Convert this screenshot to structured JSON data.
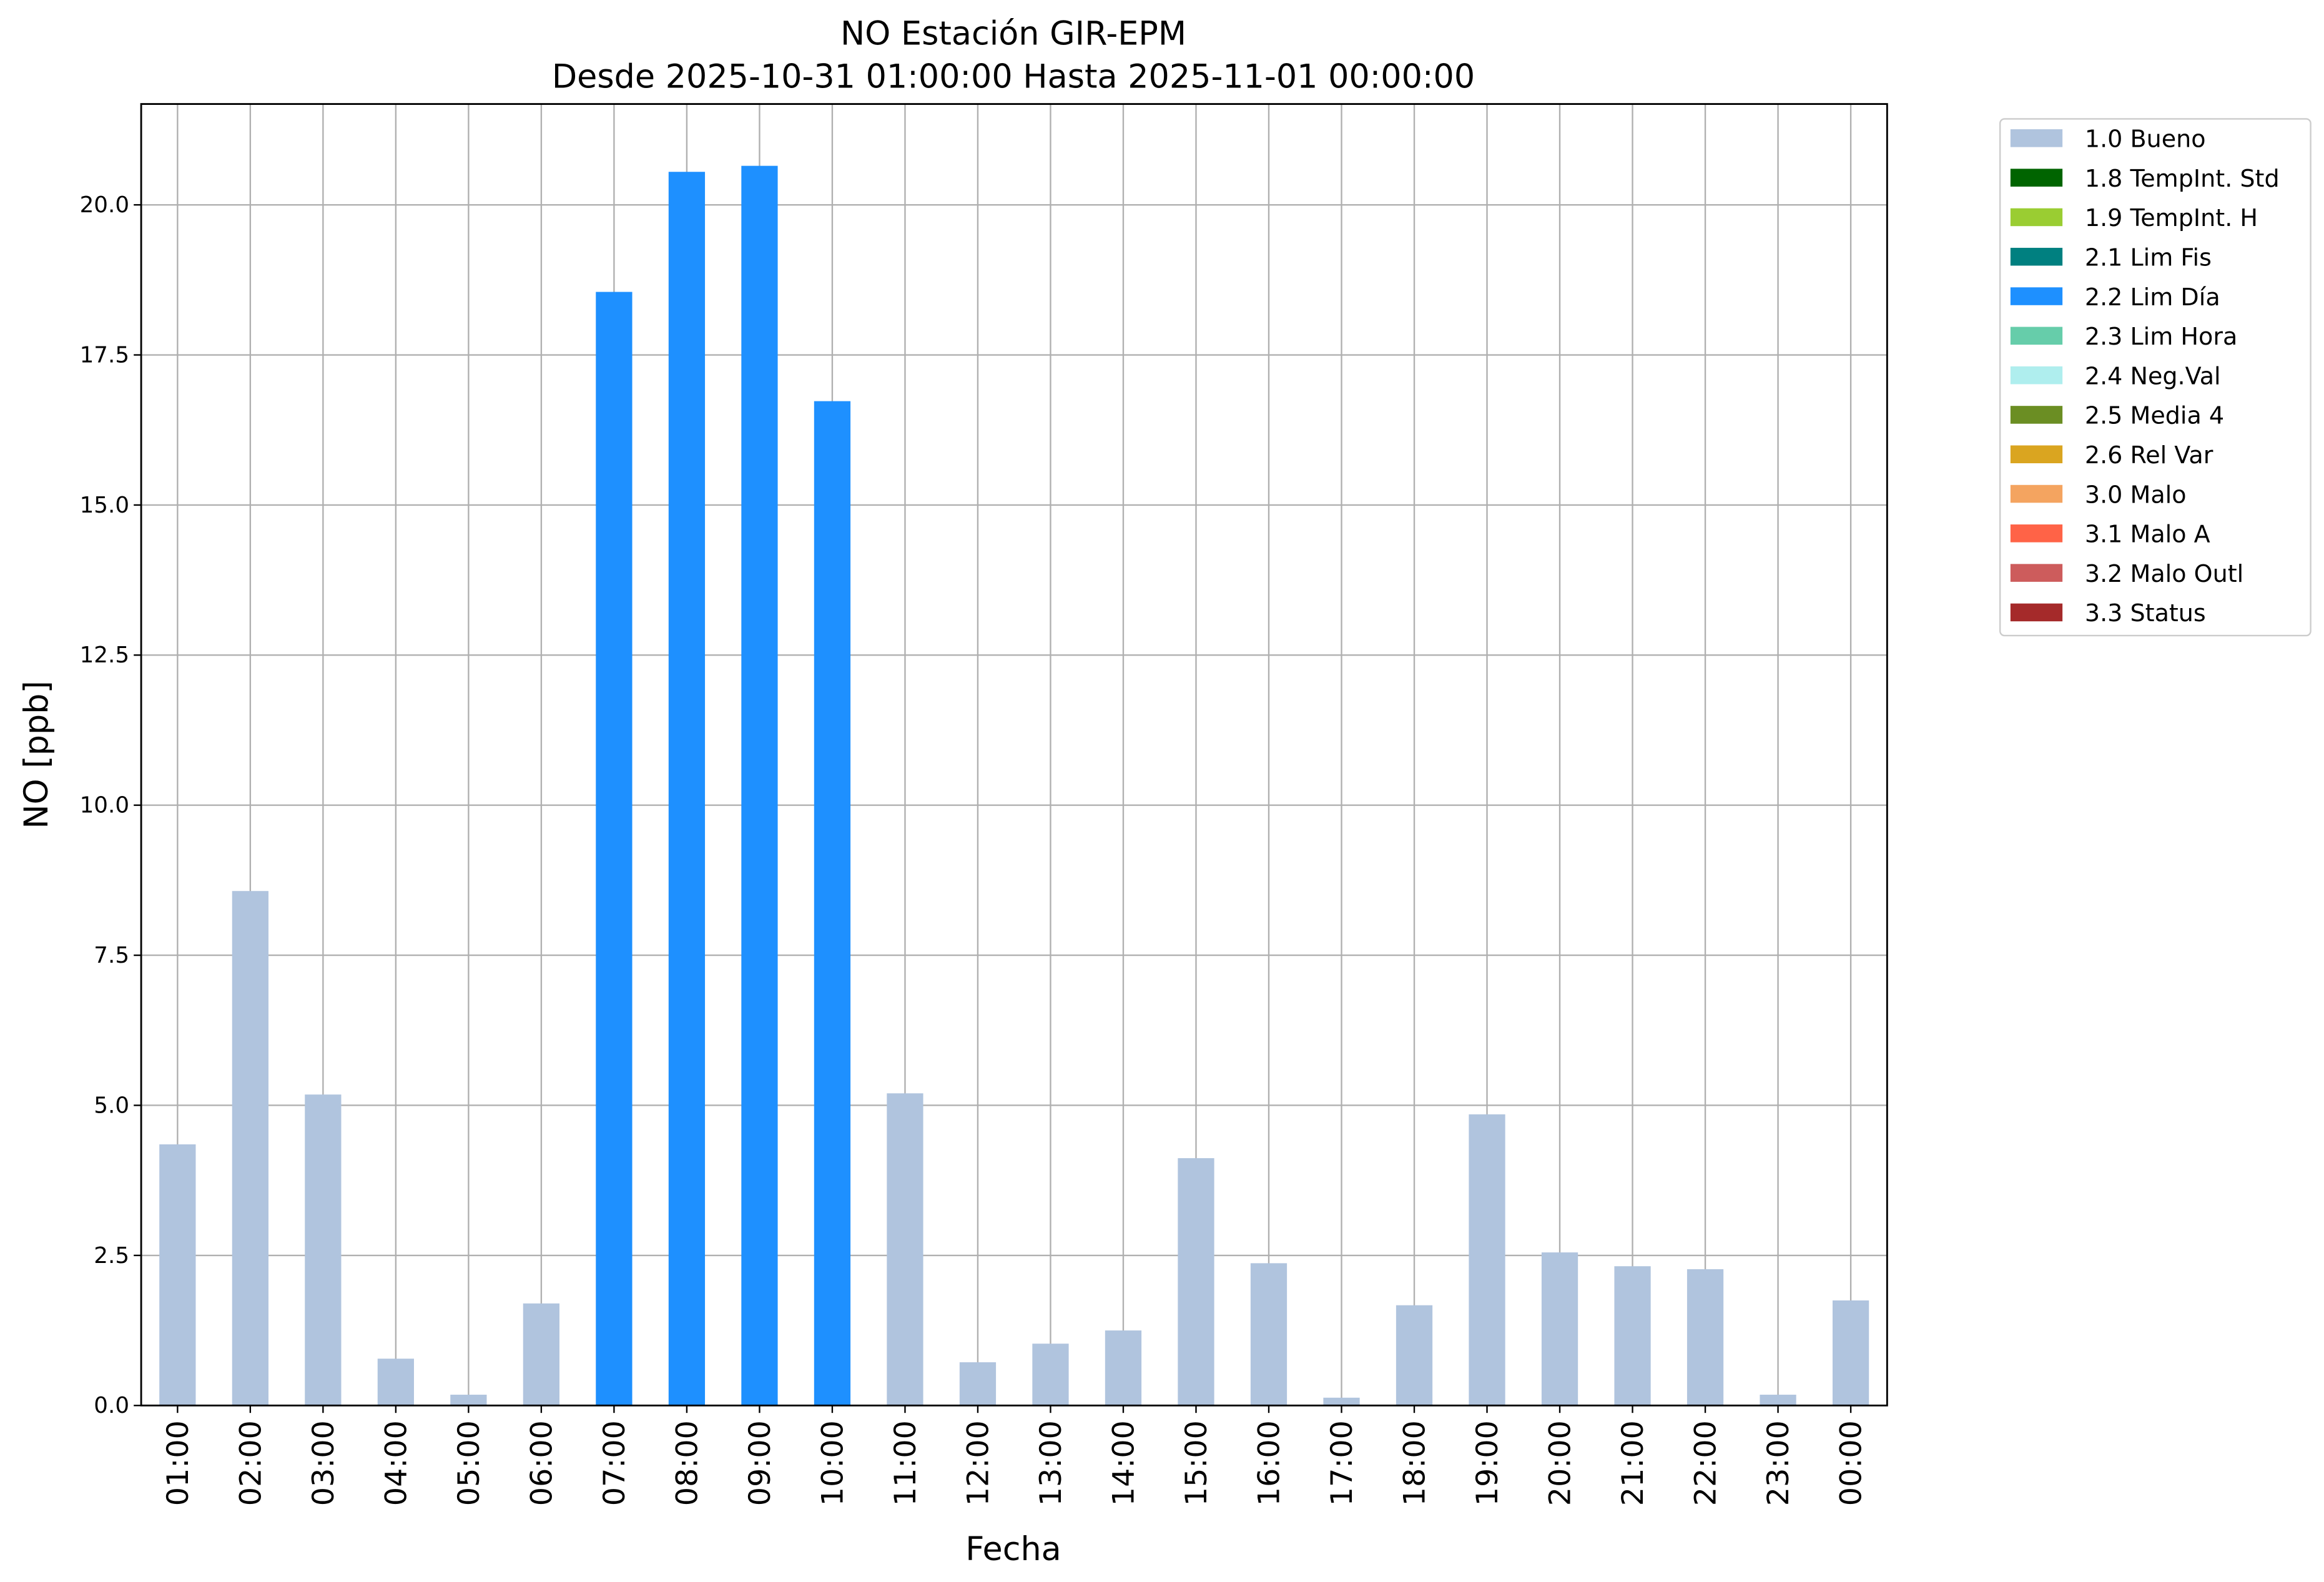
{
  "chart_data": {
    "type": "stacked_bar",
    "title": "NO Estación GIR-EPM",
    "subtitle": "Desde 2025-10-31 01:00:00 Hasta 2025-11-01 00:00:00",
    "xlabel": "Fecha",
    "ylabel": "NO [ppb]",
    "categories": [
      "01:00",
      "02:00",
      "03:00",
      "04:00",
      "05:00",
      "06:00",
      "07:00",
      "08:00",
      "09:00",
      "10:00",
      "11:00",
      "12:00",
      "13:00",
      "14:00",
      "15:00",
      "16:00",
      "17:00",
      "18:00",
      "19:00",
      "20:00",
      "21:00",
      "22:00",
      "23:00",
      "00:00"
    ],
    "series": [
      {
        "name": "1.0 Bueno",
        "color": "#b0c4de",
        "values": [
          4.35,
          8.57,
          5.18,
          0.78,
          0.18,
          1.7,
          null,
          null,
          null,
          null,
          5.2,
          0.72,
          1.03,
          1.25,
          4.12,
          2.37,
          0.13,
          1.67,
          4.85,
          2.55,
          2.32,
          2.27,
          0.18,
          1.75
        ]
      },
      {
        "name": "1.8 TempInt. Std",
        "color": "#006400",
        "values": [
          null,
          null,
          null,
          null,
          null,
          null,
          null,
          null,
          null,
          null,
          null,
          null,
          null,
          null,
          null,
          null,
          null,
          null,
          null,
          null,
          null,
          null,
          null,
          null
        ]
      },
      {
        "name": "1.9 TempInt. H",
        "color": "#9acd32",
        "values": [
          null,
          null,
          null,
          null,
          null,
          null,
          null,
          null,
          null,
          null,
          null,
          null,
          null,
          null,
          null,
          null,
          null,
          null,
          null,
          null,
          null,
          null,
          null,
          null
        ]
      },
      {
        "name": "2.1 Lim Fis",
        "color": "#008080",
        "values": [
          null,
          null,
          null,
          null,
          null,
          null,
          null,
          null,
          null,
          null,
          null,
          null,
          null,
          null,
          null,
          null,
          null,
          null,
          null,
          null,
          null,
          null,
          null,
          null
        ]
      },
      {
        "name": "2.2 Lim Día",
        "color": "#1e90ff",
        "values": [
          null,
          null,
          null,
          null,
          null,
          null,
          18.55,
          20.55,
          20.65,
          16.73,
          null,
          null,
          null,
          null,
          null,
          null,
          null,
          null,
          null,
          null,
          null,
          null,
          null,
          null
        ]
      },
      {
        "name": "2.3 Lim Hora",
        "color": "#66cdaa",
        "values": [
          null,
          null,
          null,
          null,
          null,
          null,
          null,
          null,
          null,
          null,
          null,
          null,
          null,
          null,
          null,
          null,
          null,
          null,
          null,
          null,
          null,
          null,
          null,
          null
        ]
      },
      {
        "name": "2.4 Neg.Val",
        "color": "#afeeee",
        "values": [
          null,
          null,
          null,
          null,
          null,
          null,
          null,
          null,
          null,
          null,
          null,
          null,
          null,
          null,
          null,
          null,
          null,
          null,
          null,
          null,
          null,
          null,
          null,
          null
        ]
      },
      {
        "name": "2.5 Media 4",
        "color": "#6b8e23",
        "values": [
          null,
          null,
          null,
          null,
          null,
          null,
          null,
          null,
          null,
          null,
          null,
          null,
          null,
          null,
          null,
          null,
          null,
          null,
          null,
          null,
          null,
          null,
          null,
          null
        ]
      },
      {
        "name": "2.6 Rel Var",
        "color": "#daa520",
        "values": [
          null,
          null,
          null,
          null,
          null,
          null,
          null,
          null,
          null,
          null,
          null,
          null,
          null,
          null,
          null,
          null,
          null,
          null,
          null,
          null,
          null,
          null,
          null,
          null
        ]
      },
      {
        "name": "3.0 Malo",
        "color": "#f4a460",
        "values": [
          null,
          null,
          null,
          null,
          null,
          null,
          null,
          null,
          null,
          null,
          null,
          null,
          null,
          null,
          null,
          null,
          null,
          null,
          null,
          null,
          null,
          null,
          null,
          null
        ]
      },
      {
        "name": "3.1 Malo A",
        "color": "#ff6347",
        "values": [
          null,
          null,
          null,
          null,
          null,
          null,
          null,
          null,
          null,
          null,
          null,
          null,
          null,
          null,
          null,
          null,
          null,
          null,
          null,
          null,
          null,
          null,
          null,
          null
        ]
      },
      {
        "name": "3.2 Malo Outl",
        "color": "#cd5c5c",
        "values": [
          null,
          null,
          null,
          null,
          null,
          null,
          null,
          null,
          null,
          null,
          null,
          null,
          null,
          null,
          null,
          null,
          null,
          null,
          null,
          null,
          null,
          null,
          null,
          null
        ]
      },
      {
        "name": "3.3 Status",
        "color": "#a52a2a",
        "values": [
          null,
          null,
          null,
          null,
          null,
          null,
          null,
          null,
          null,
          null,
          null,
          null,
          null,
          null,
          null,
          null,
          null,
          null,
          null,
          null,
          null,
          null,
          null,
          null
        ]
      }
    ],
    "ylim": [
      0,
      21.68
    ],
    "yticks": [
      {
        "value": 0,
        "label": "0.0"
      },
      {
        "value": 2.5,
        "label": "2.5"
      },
      {
        "value": 5,
        "label": "5.0"
      },
      {
        "value": 7.5,
        "label": "7.5"
      },
      {
        "value": 10,
        "label": "10.0"
      },
      {
        "value": 12.5,
        "label": "12.5"
      },
      {
        "value": 15,
        "label": "15.0"
      },
      {
        "value": 17.5,
        "label": "17.5"
      },
      {
        "value": 20,
        "label": "20.0"
      }
    ],
    "grid": true,
    "legend": "outside upper right"
  }
}
